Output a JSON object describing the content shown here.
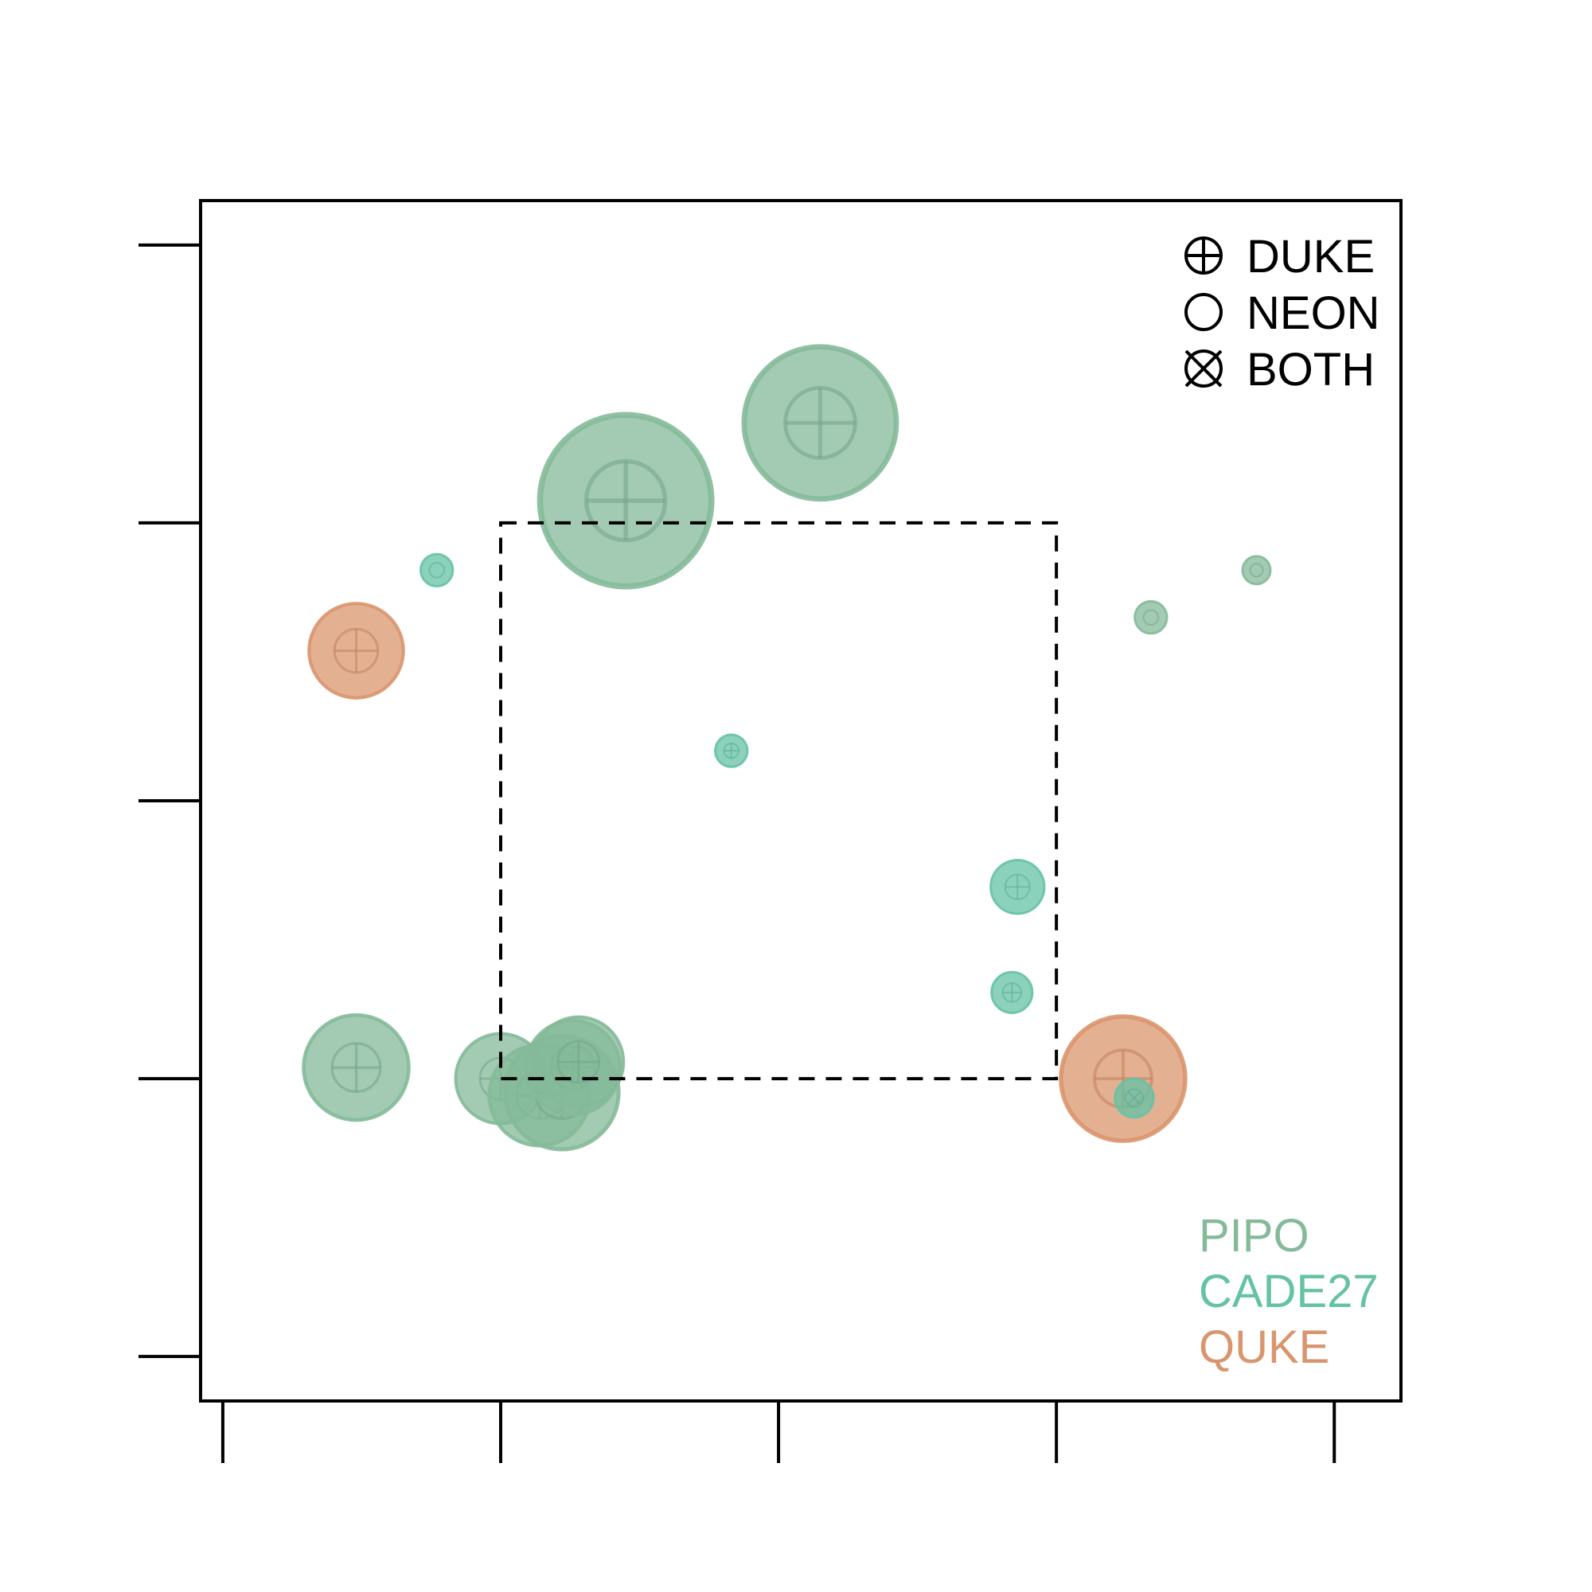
{
  "chart_data": {
    "type": "scatter",
    "title": "",
    "xlabel": "",
    "ylabel": "",
    "xlim": [
      -0.08,
      4.24
    ],
    "ylim": [
      -0.16,
      4.16
    ],
    "xticks": [
      0,
      1,
      2,
      3,
      4
    ],
    "yticks": [
      0,
      1,
      2,
      3,
      4
    ],
    "tick_labels_shown": false,
    "grid": false,
    "colors": {
      "PIPO": "#84ba99",
      "CADE27": "#66c2a5",
      "QUKE": "#d9956d",
      "outline": "#000000"
    },
    "reference_box": {
      "x": [
        1,
        3
      ],
      "y": [
        1,
        3
      ],
      "style": "dashed"
    },
    "symbol_legend": {
      "position": "top-right",
      "items": [
        {
          "label": "DUKE",
          "icon": "circle-plus-icon"
        },
        {
          "label": "NEON",
          "icon": "circle-icon"
        },
        {
          "label": "BOTH",
          "icon": "circle-x-icon"
        }
      ]
    },
    "species_legend": {
      "position": "bottom-right",
      "items": [
        {
          "label": "PIPO",
          "color": "#84ba99"
        },
        {
          "label": "CADE27",
          "color": "#66c2a5"
        },
        {
          "label": "QUKE",
          "color": "#d9956d"
        }
      ]
    },
    "points": [
      {
        "species": "PIPO",
        "source": "DUKE",
        "x": 1.45,
        "y": 3.08,
        "size": 80
      },
      {
        "species": "PIPO",
        "source": "DUKE",
        "x": 2.15,
        "y": 3.36,
        "size": 71
      },
      {
        "species": "CADE27",
        "source": "NEON",
        "x": 0.77,
        "y": 2.83,
        "size": 15
      },
      {
        "species": "QUKE",
        "source": "DUKE",
        "x": 0.48,
        "y": 2.54,
        "size": 44
      },
      {
        "species": "PIPO",
        "source": "NEON",
        "x": 3.72,
        "y": 2.83,
        "size": 13
      },
      {
        "species": "PIPO",
        "source": "NEON",
        "x": 3.34,
        "y": 2.66,
        "size": 15
      },
      {
        "species": "CADE27",
        "source": "DUKE",
        "x": 1.83,
        "y": 2.18,
        "size": 15
      },
      {
        "species": "CADE27",
        "source": "DUKE",
        "x": 2.86,
        "y": 1.69,
        "size": 25
      },
      {
        "species": "CADE27",
        "source": "DUKE",
        "x": 2.84,
        "y": 1.31,
        "size": 19
      },
      {
        "species": "PIPO",
        "source": "DUKE",
        "x": 0.48,
        "y": 1.04,
        "size": 49
      },
      {
        "species": "PIPO",
        "source": "DUKE",
        "x": 1.0,
        "y": 1.0,
        "size": 42
      },
      {
        "species": "PIPO",
        "source": "DUKE",
        "x": 1.14,
        "y": 0.94,
        "size": 47
      },
      {
        "species": "PIPO",
        "source": "DUKE",
        "x": 1.22,
        "y": 0.95,
        "size": 53
      },
      {
        "species": "PIPO",
        "source": "DUKE",
        "x": 1.26,
        "y": 1.04,
        "size": 44
      },
      {
        "species": "PIPO",
        "source": "DUKE",
        "x": 1.28,
        "y": 1.06,
        "size": 42
      },
      {
        "species": "QUKE",
        "source": "DUKE",
        "x": 3.24,
        "y": 1.0,
        "size": 58
      },
      {
        "species": "CADE27",
        "source": "BOTH",
        "x": 3.28,
        "y": 0.93,
        "size": 18
      }
    ]
  }
}
